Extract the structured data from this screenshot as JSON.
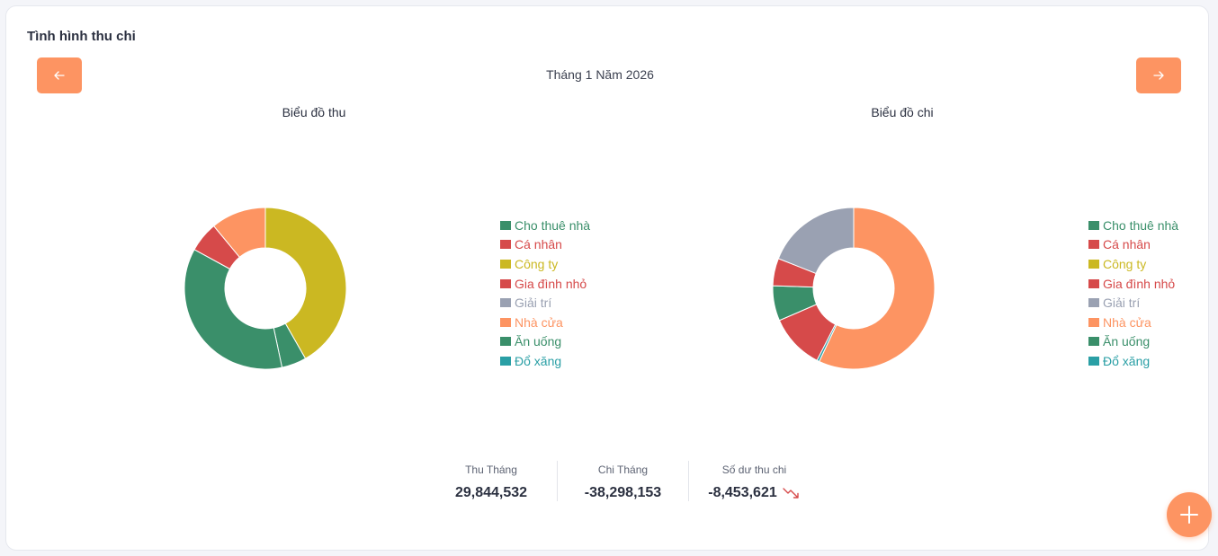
{
  "header": {
    "title": "Tình hình thu chi"
  },
  "period": {
    "label": "Tháng 1 Năm 2026"
  },
  "colors": {
    "accent": "#fd9462",
    "danger": "#d64a4a"
  },
  "chart_data": [
    {
      "type": "pie",
      "title": "Biểu đồ thu",
      "donut": true,
      "categories": [
        "Cho thuê nhà",
        "Cá nhân",
        "Công ty",
        "Gia đình nhỏ",
        "Giải trí",
        "Nhà cửa",
        "Ăn uống",
        "Đổ xăng"
      ],
      "values": [
        4.5,
        0,
        38,
        5.5,
        0,
        10,
        33,
        0
      ],
      "unit": "%",
      "legend_position": "right",
      "series_colors": [
        "#3a8f6a",
        "#d64a4a",
        "#cbb822",
        "#d64a4a",
        "#9aa1b2",
        "#fd9462",
        "#3a8f6a",
        "#2a9fa5"
      ],
      "slice_colors": [
        "#3a8f6a",
        "#d64a4a",
        "#cbb822",
        "#d64a4a",
        "#9aa1b2",
        "#fd9462",
        "#3a8f6a",
        "#2a9fa5"
      ],
      "order": [
        2,
        0,
        6,
        3,
        5,
        1
      ]
    },
    {
      "type": "pie",
      "title": "Biểu đồ chi",
      "donut": true,
      "categories": [
        "Cho thuê nhà",
        "Cá nhân",
        "Công ty",
        "Gia đình nhỏ",
        "Giải trí",
        "Nhà cửa",
        "Ăn uống",
        "Đổ xăng"
      ],
      "values": [
        7,
        11,
        0,
        5.5,
        19,
        57,
        0,
        0.5
      ],
      "unit": "%",
      "legend_position": "right",
      "series_colors": [
        "#3a8f6a",
        "#d64a4a",
        "#cbb822",
        "#d64a4a",
        "#9aa1b2",
        "#fd9462",
        "#3a8f6a",
        "#2a9fa5"
      ],
      "slice_colors": [
        "#3a8f6a",
        "#d64a4a",
        "#cbb822",
        "#d64a4a",
        "#9aa1b2",
        "#fd9462",
        "#3a8f6a",
        "#2a9fa5"
      ],
      "order": [
        5,
        7,
        1,
        0,
        3,
        4
      ]
    }
  ],
  "summary": {
    "income_label": "Thu Tháng",
    "income_value": "29,844,532",
    "expense_label": "Chi Tháng",
    "expense_value": "-38,298,153",
    "balance_label": "Số dư thu chi",
    "balance_value": "-8,453,621",
    "trend": "down"
  }
}
